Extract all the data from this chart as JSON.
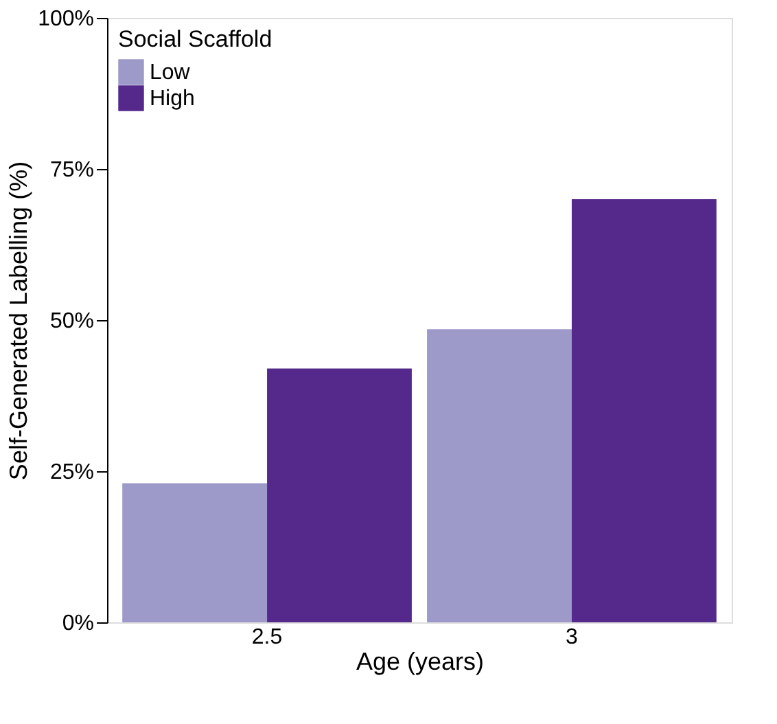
{
  "chart_data": {
    "type": "bar",
    "xlabel": "Age (years)",
    "ylabel": "Self-Generated Labelling (%)",
    "legend_title": "Social Scaffold",
    "categories": [
      "2.5",
      "3"
    ],
    "series": [
      {
        "name": "Low",
        "color": "#9d99c9",
        "values": [
          23,
          48.5
        ]
      },
      {
        "name": "High",
        "color": "#55288c",
        "values": [
          42,
          70
        ]
      }
    ],
    "ylim": [
      0,
      100
    ],
    "yticks": [
      {
        "value": 0,
        "label": "0%"
      },
      {
        "value": 25,
        "label": "25%"
      },
      {
        "value": 50,
        "label": "50%"
      },
      {
        "value": 75,
        "label": "75%"
      },
      {
        "value": 100,
        "label": "100%"
      }
    ],
    "legend": "top left",
    "grid": false
  }
}
